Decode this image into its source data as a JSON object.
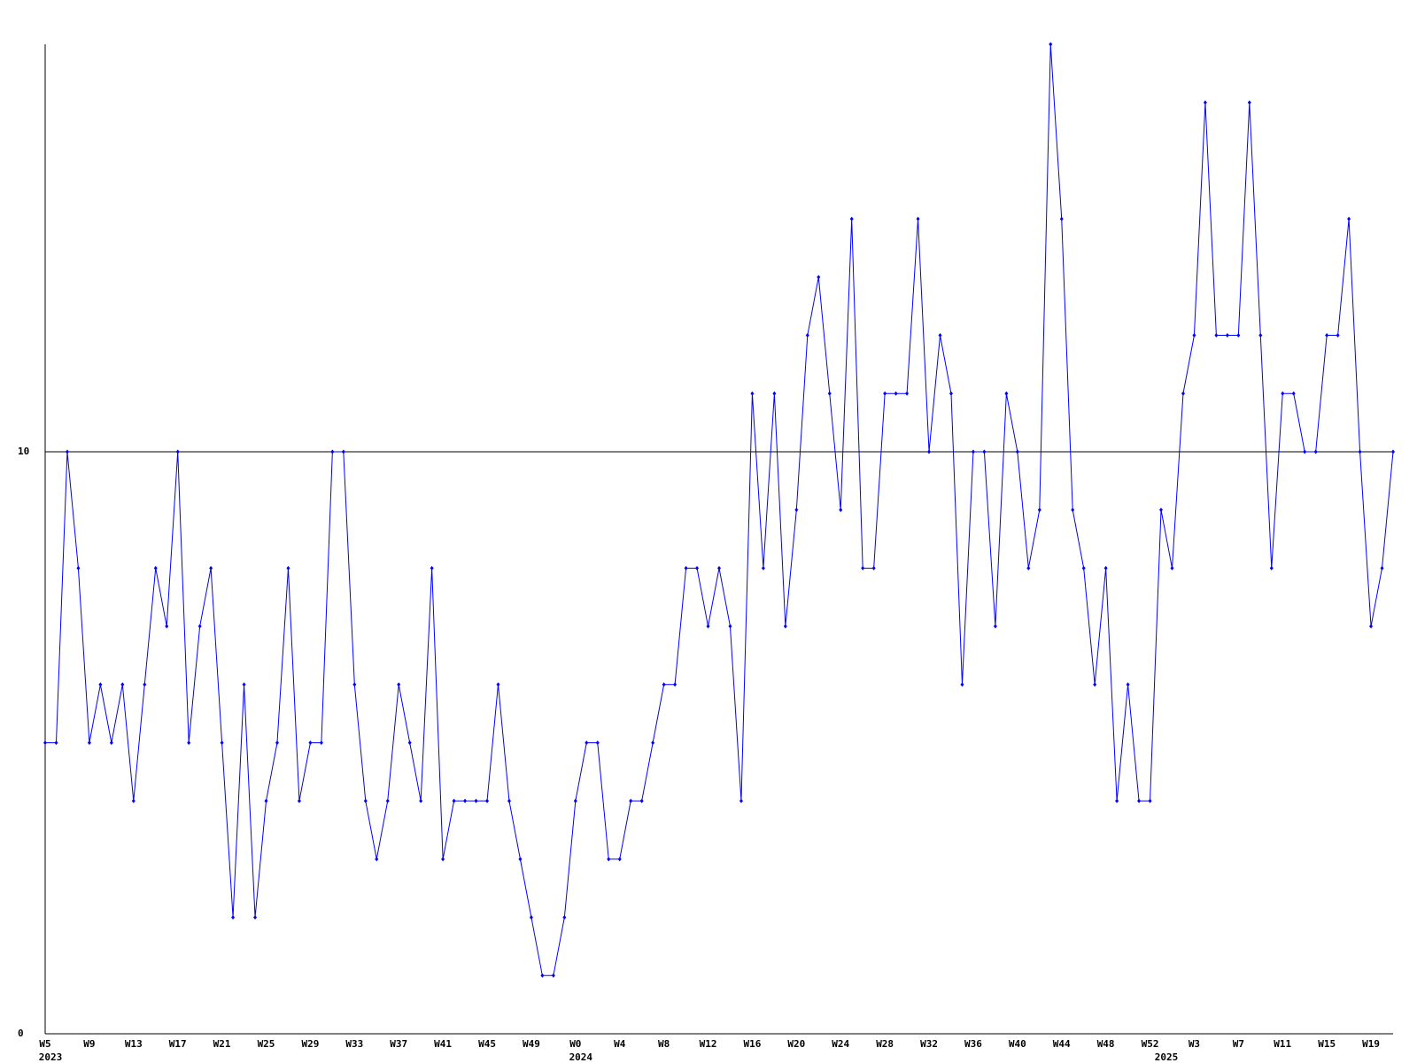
{
  "chart_data": {
    "type": "line",
    "color": "#0000ff",
    "grid": true,
    "ylim": [
      0,
      17
    ],
    "yticks": [
      0,
      10
    ],
    "categories": [
      "W5",
      null,
      null,
      null,
      "W9",
      null,
      null,
      null,
      "W13",
      null,
      null,
      null,
      "W17",
      null,
      null,
      null,
      "W21",
      null,
      null,
      null,
      "W25",
      null,
      null,
      null,
      "W29",
      null,
      null,
      null,
      "W33",
      null,
      null,
      null,
      "W37",
      null,
      null,
      null,
      "W41",
      null,
      null,
      null,
      "W45",
      null,
      null,
      null,
      "W49",
      null,
      null,
      null,
      "W0",
      null,
      null,
      null,
      "W4",
      null,
      null,
      null,
      "W8",
      null,
      null,
      null,
      "W12",
      null,
      null,
      null,
      "W16",
      null,
      null,
      null,
      "W20",
      null,
      null,
      null,
      "W24",
      null,
      null,
      null,
      "W28",
      null,
      null,
      null,
      "W32",
      null,
      null,
      null,
      "W36",
      null,
      null,
      null,
      "W40",
      null,
      null,
      null,
      "W44",
      null,
      null,
      null,
      "W48",
      null,
      null,
      null,
      "W52",
      null,
      null,
      null,
      "W3",
      null,
      null,
      null,
      "W7",
      null,
      null,
      null,
      "W11",
      null,
      null,
      null,
      "W15",
      null,
      null,
      null,
      "W19",
      null,
      null
    ],
    "category_years": [
      "2023",
      null,
      null,
      null,
      null,
      null,
      null,
      null,
      null,
      null,
      null,
      null,
      null,
      null,
      null,
      null,
      null,
      null,
      null,
      null,
      null,
      null,
      null,
      null,
      null,
      null,
      null,
      null,
      null,
      null,
      null,
      null,
      null,
      null,
      null,
      null,
      null,
      null,
      null,
      null,
      null,
      null,
      null,
      null,
      null,
      null,
      null,
      null,
      "2024",
      null,
      null,
      null,
      null,
      null,
      null,
      null,
      null,
      null,
      null,
      null,
      null,
      null,
      null,
      null,
      null,
      null,
      null,
      null,
      null,
      null,
      null,
      null,
      null,
      null,
      null,
      null,
      null,
      null,
      null,
      null,
      null,
      null,
      null,
      null,
      null,
      null,
      null,
      null,
      null,
      null,
      null,
      null,
      null,
      null,
      null,
      null,
      null,
      null,
      null,
      null,
      null,
      "2025",
      null,
      null,
      null,
      null,
      null,
      null,
      null,
      null,
      null,
      null,
      null,
      null,
      null,
      null,
      null,
      null,
      null,
      null,
      null,
      null,
      null
    ],
    "values": [
      5,
      5,
      10,
      8,
      5,
      6,
      5,
      6,
      4,
      6,
      8,
      7,
      10,
      5,
      7,
      8,
      5,
      2,
      6,
      2,
      4,
      5,
      8,
      4,
      5,
      5,
      10,
      10,
      6,
      4,
      3,
      4,
      6,
      5,
      4,
      8,
      3,
      4,
      4,
      4,
      4,
      6,
      4,
      3,
      2,
      1,
      1,
      2,
      4,
      5,
      5,
      3,
      3,
      4,
      4,
      5,
      6,
      6,
      8,
      8,
      7,
      8,
      7,
      4,
      11,
      8,
      11,
      7,
      9,
      12,
      13,
      11,
      9,
      14,
      8,
      8,
      11,
      11,
      11,
      14,
      10,
      12,
      11,
      6,
      10,
      10,
      7,
      11,
      10,
      8,
      9,
      17,
      14,
      9,
      8,
      6,
      8,
      4,
      6,
      4,
      4,
      9,
      8,
      11,
      12,
      16,
      12,
      12,
      12,
      16,
      12,
      8,
      11,
      11,
      10,
      10,
      12,
      12,
      14,
      10,
      7,
      8,
      10
    ]
  }
}
